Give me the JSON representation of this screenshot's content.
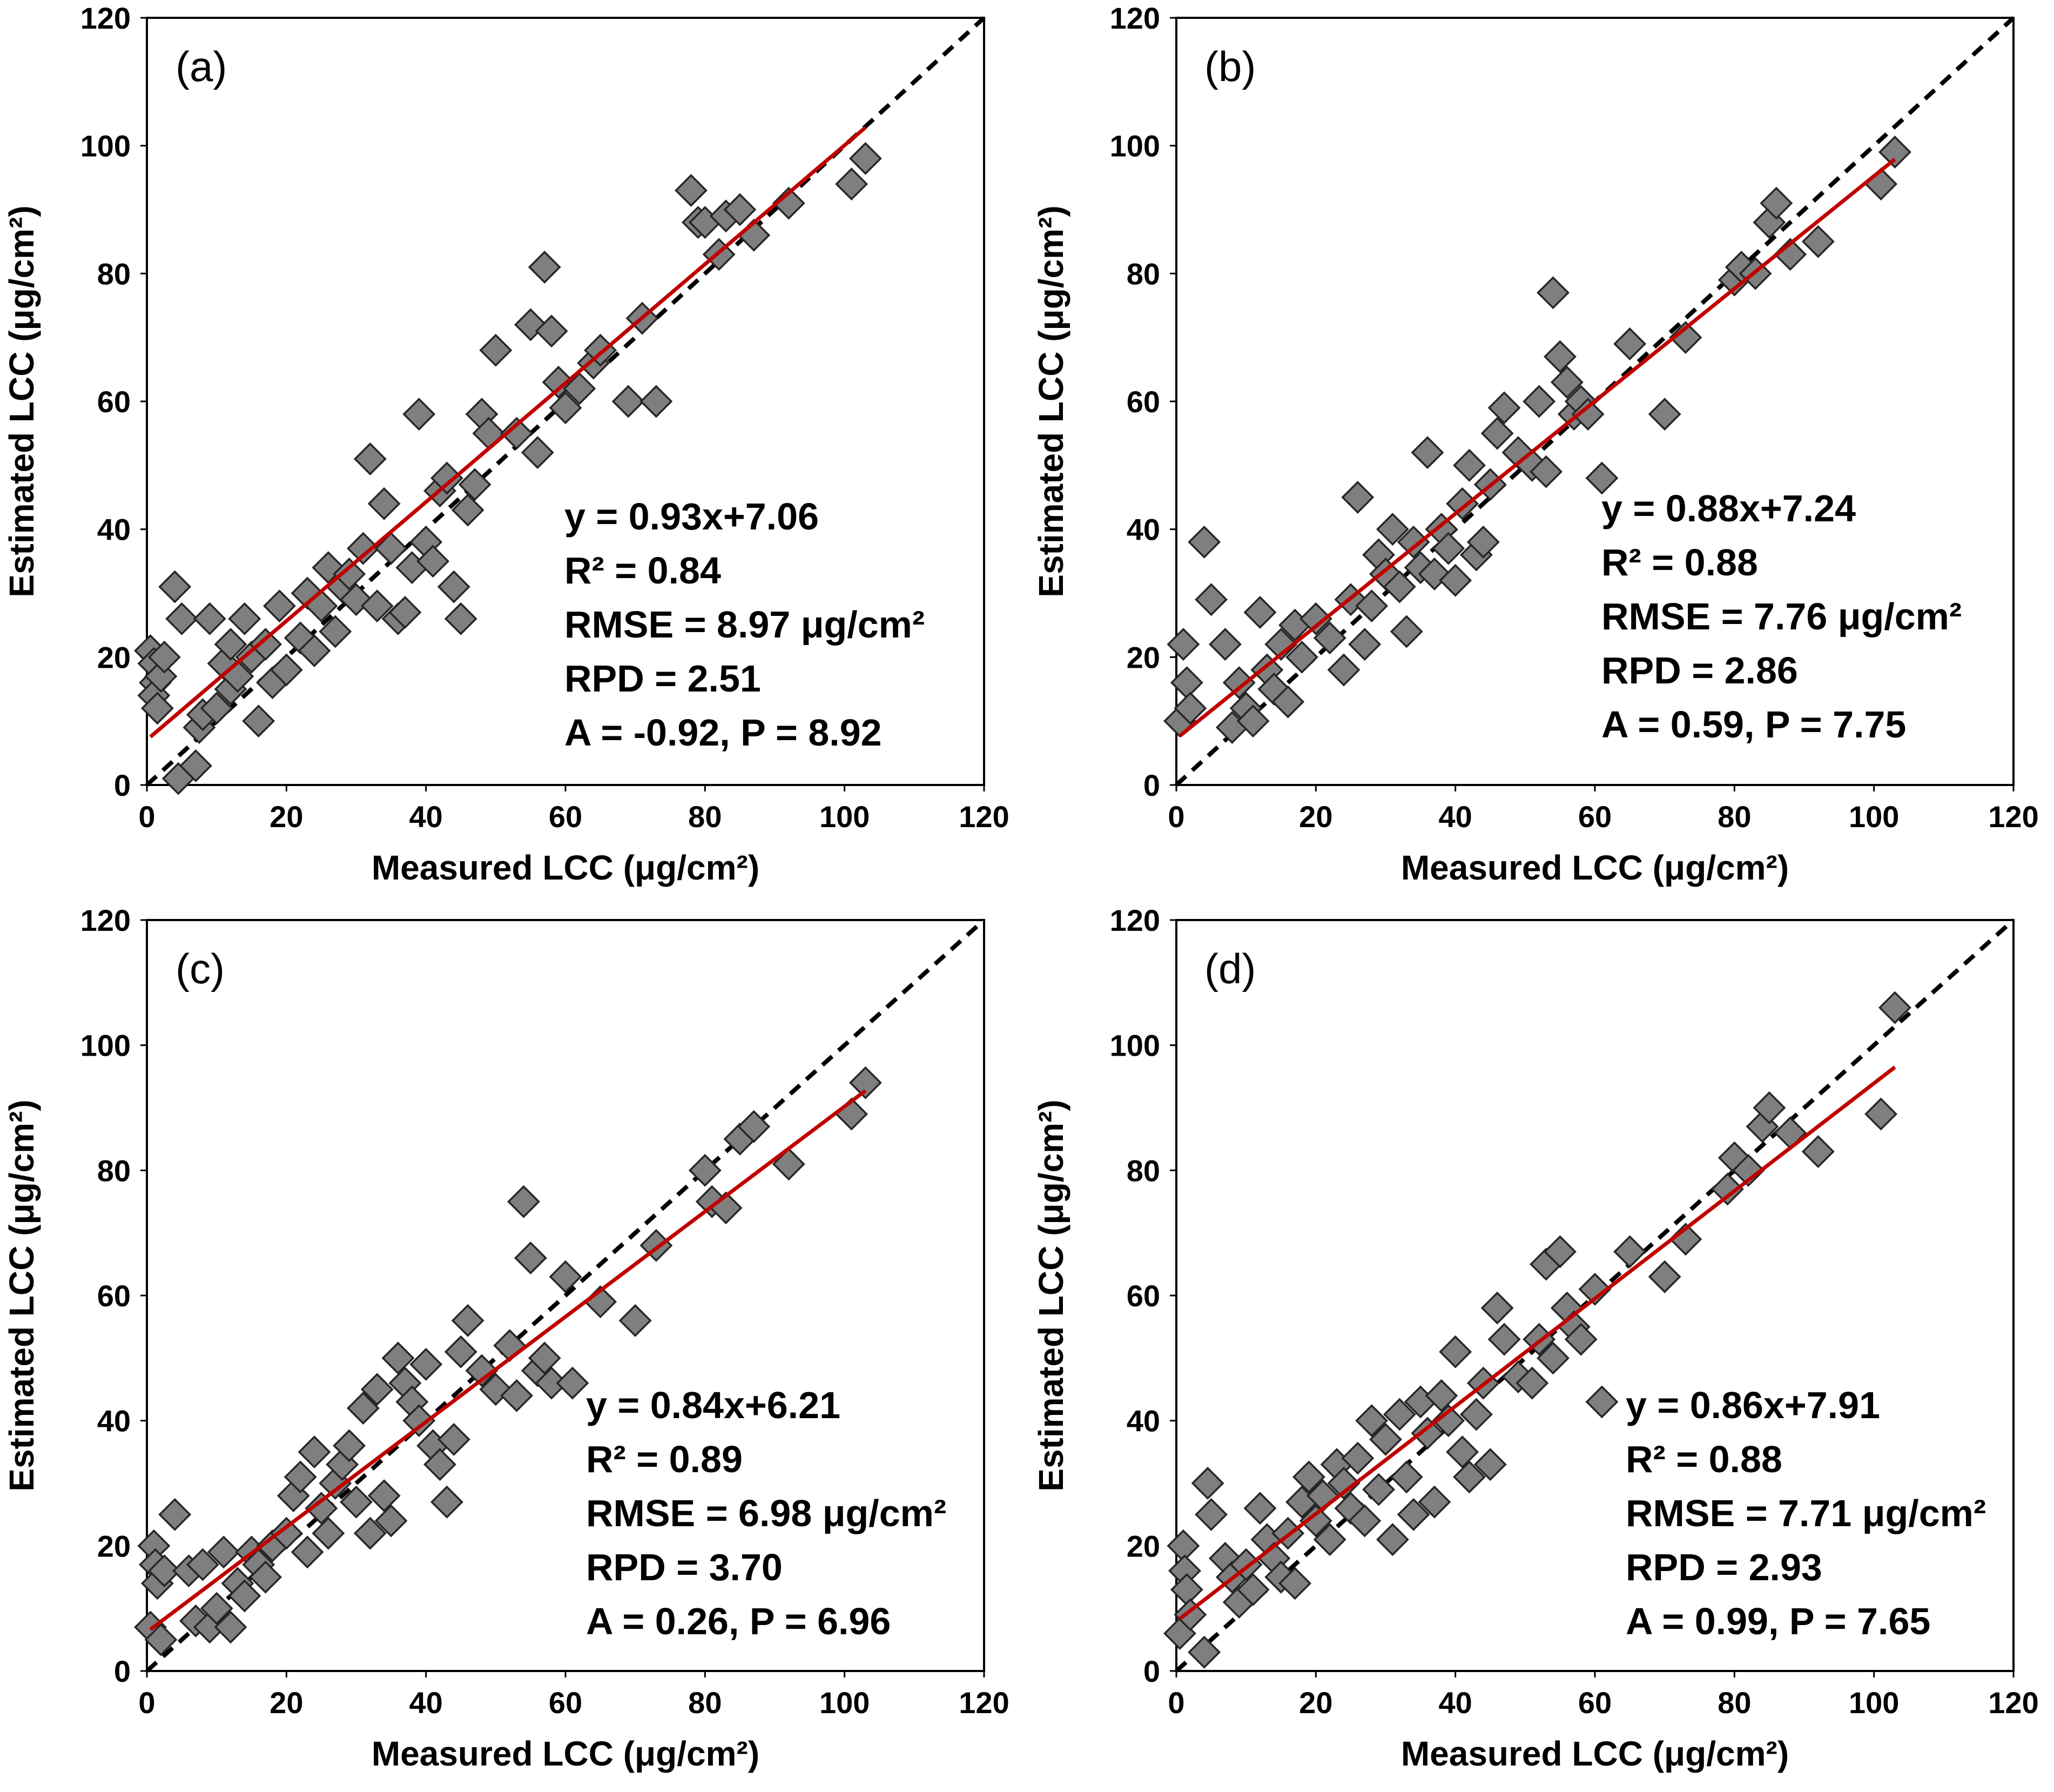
{
  "chart_data": [
    {
      "type": "scatter",
      "panel_label": "(a)",
      "xlabel": "Measured  LCC (μg/cm²)",
      "ylabel": "Estimated  LCC (μg/cm²)",
      "xlim": [
        0,
        120
      ],
      "ylim": [
        0,
        120
      ],
      "xticks": [
        0,
        20,
        40,
        60,
        80,
        100,
        120
      ],
      "yticks": [
        0,
        20,
        40,
        60,
        80,
        100,
        120
      ],
      "fit": {
        "slope": 0.93,
        "intercept": 7.06,
        "x_range": [
          0.5,
          103
        ]
      },
      "stats": [
        "y = 0.93x+7.06",
        "R² = 0.84",
        "RMSE = 8.97 μg/cm²",
        "RPD = 2.51",
        "A = -0.92, P = 8.92"
      ],
      "points": [
        [
          0.5,
          21
        ],
        [
          1,
          19
        ],
        [
          1.2,
          16
        ],
        [
          1,
          14
        ],
        [
          1.5,
          12
        ],
        [
          2,
          17
        ],
        [
          2.5,
          20
        ],
        [
          4,
          31
        ],
        [
          5,
          26
        ],
        [
          4.5,
          1
        ],
        [
          7,
          3
        ],
        [
          7.5,
          9
        ],
        [
          8,
          11
        ],
        [
          9,
          26
        ],
        [
          10,
          12
        ],
        [
          11,
          19
        ],
        [
          12,
          22
        ],
        [
          12,
          15
        ],
        [
          13,
          17
        ],
        [
          14,
          26
        ],
        [
          15,
          20
        ],
        [
          16,
          10
        ],
        [
          17,
          22
        ],
        [
          18,
          16
        ],
        [
          19,
          28
        ],
        [
          20,
          18
        ],
        [
          22,
          23
        ],
        [
          23,
          30
        ],
        [
          24,
          21
        ],
        [
          25,
          28
        ],
        [
          26,
          34
        ],
        [
          27,
          24
        ],
        [
          28,
          31
        ],
        [
          29,
          33
        ],
        [
          30,
          29
        ],
        [
          31,
          37
        ],
        [
          32,
          51
        ],
        [
          33,
          28
        ],
        [
          34,
          44
        ],
        [
          35,
          37
        ],
        [
          36,
          26
        ],
        [
          37,
          27
        ],
        [
          38,
          34
        ],
        [
          39,
          58
        ],
        [
          40,
          38
        ],
        [
          41,
          35
        ],
        [
          42,
          46
        ],
        [
          43,
          48
        ],
        [
          44,
          31
        ],
        [
          45,
          26
        ],
        [
          46,
          43
        ],
        [
          47,
          47
        ],
        [
          48,
          58
        ],
        [
          49,
          55
        ],
        [
          50,
          68
        ],
        [
          53,
          55
        ],
        [
          55,
          72
        ],
        [
          56,
          52
        ],
        [
          57,
          81
        ],
        [
          58,
          71
        ],
        [
          59,
          63
        ],
        [
          60,
          59
        ],
        [
          62,
          62
        ],
        [
          64,
          66
        ],
        [
          65,
          68
        ],
        [
          69,
          60
        ],
        [
          71,
          73
        ],
        [
          73,
          60
        ],
        [
          78,
          93
        ],
        [
          79,
          88
        ],
        [
          80,
          88
        ],
        [
          82,
          83
        ],
        [
          83,
          89
        ],
        [
          85,
          90
        ],
        [
          87,
          86
        ],
        [
          92,
          91
        ],
        [
          101,
          94
        ],
        [
          103,
          98
        ]
      ]
    },
    {
      "type": "scatter",
      "panel_label": "(b)",
      "xlabel": "Measured  LCC (μg/cm²)",
      "ylabel": "Estimated  LCC (μg/cm²)",
      "xlim": [
        0,
        120
      ],
      "ylim": [
        0,
        120
      ],
      "xticks": [
        0,
        20,
        40,
        60,
        80,
        100,
        120
      ],
      "yticks": [
        0,
        20,
        40,
        60,
        80,
        100,
        120
      ],
      "fit": {
        "slope": 0.88,
        "intercept": 7.24,
        "x_range": [
          0.5,
          103
        ]
      },
      "stats": [
        "y = 0.88x+7.24",
        "R² = 0.88",
        "RMSE = 7.76 μg/cm²",
        "RPD = 2.86",
        "A = 0.59, P = 7.75"
      ],
      "points": [
        [
          0.5,
          10
        ],
        [
          1,
          22
        ],
        [
          1.5,
          16
        ],
        [
          2,
          12
        ],
        [
          4,
          38
        ],
        [
          5,
          29
        ],
        [
          7,
          22
        ],
        [
          8,
          9
        ],
        [
          9,
          16
        ],
        [
          10,
          12
        ],
        [
          11,
          10
        ],
        [
          12,
          27
        ],
        [
          13,
          18
        ],
        [
          14,
          15
        ],
        [
          15,
          22
        ],
        [
          16,
          13
        ],
        [
          17,
          25
        ],
        [
          18,
          20
        ],
        [
          20,
          26
        ],
        [
          22,
          23
        ],
        [
          24,
          18
        ],
        [
          25,
          29
        ],
        [
          26,
          45
        ],
        [
          27,
          22
        ],
        [
          28,
          28
        ],
        [
          29,
          36
        ],
        [
          30,
          33
        ],
        [
          31,
          40
        ],
        [
          32,
          31
        ],
        [
          33,
          24
        ],
        [
          34,
          38
        ],
        [
          35,
          34
        ],
        [
          36,
          52
        ],
        [
          37,
          33
        ],
        [
          38,
          40
        ],
        [
          39,
          37
        ],
        [
          40,
          32
        ],
        [
          41,
          44
        ],
        [
          42,
          50
        ],
        [
          43,
          36
        ],
        [
          44,
          38
        ],
        [
          45,
          47
        ],
        [
          46,
          55
        ],
        [
          47,
          59
        ],
        [
          49,
          52
        ],
        [
          51,
          50
        ],
        [
          52,
          60
        ],
        [
          53,
          49
        ],
        [
          54,
          77
        ],
        [
          55,
          67
        ],
        [
          56,
          63
        ],
        [
          57,
          58
        ],
        [
          58,
          60
        ],
        [
          59,
          58
        ],
        [
          61,
          48
        ],
        [
          65,
          69
        ],
        [
          70,
          58
        ],
        [
          73,
          70
        ],
        [
          80,
          79
        ],
        [
          81,
          81
        ],
        [
          83,
          80
        ],
        [
          85,
          88
        ],
        [
          86,
          91
        ],
        [
          88,
          83
        ],
        [
          92,
          85
        ],
        [
          101,
          94
        ],
        [
          103,
          99
        ]
      ]
    },
    {
      "type": "scatter",
      "panel_label": "(c)",
      "xlabel": "Measured  LCC (μg/cm²)",
      "ylabel": "Estimated  LCC (μg/cm²)",
      "xlim": [
        0,
        120
      ],
      "ylim": [
        0,
        120
      ],
      "xticks": [
        0,
        20,
        40,
        60,
        80,
        100,
        120
      ],
      "yticks": [
        0,
        20,
        40,
        60,
        80,
        100,
        120
      ],
      "fit": {
        "slope": 0.84,
        "intercept": 6.21,
        "x_range": [
          0.5,
          103
        ]
      },
      "stats": [
        "y = 0.84x+6.21",
        "R² = 0.89",
        "RMSE = 6.98 μg/cm²",
        "RPD = 3.70",
        "A = 0.26, P = 6.96"
      ],
      "points": [
        [
          0.5,
          7
        ],
        [
          1,
          20
        ],
        [
          1.2,
          17
        ],
        [
          1.5,
          14
        ],
        [
          2,
          5
        ],
        [
          2.5,
          16
        ],
        [
          4,
          25
        ],
        [
          6,
          16
        ],
        [
          7,
          8
        ],
        [
          8,
          17
        ],
        [
          9,
          7
        ],
        [
          10,
          10
        ],
        [
          11,
          19
        ],
        [
          12,
          7
        ],
        [
          13,
          14
        ],
        [
          14,
          12
        ],
        [
          15,
          19
        ],
        [
          16,
          17
        ],
        [
          17,
          15
        ],
        [
          18,
          20
        ],
        [
          20,
          22
        ],
        [
          21,
          28
        ],
        [
          22,
          31
        ],
        [
          23,
          19
        ],
        [
          24,
          35
        ],
        [
          25,
          26
        ],
        [
          26,
          22
        ],
        [
          27,
          30
        ],
        [
          28,
          33
        ],
        [
          29,
          36
        ],
        [
          30,
          27
        ],
        [
          31,
          42
        ],
        [
          32,
          22
        ],
        [
          33,
          45
        ],
        [
          34,
          28
        ],
        [
          35,
          24
        ],
        [
          36,
          50
        ],
        [
          37,
          46
        ],
        [
          38,
          43
        ],
        [
          39,
          40
        ],
        [
          40,
          49
        ],
        [
          41,
          36
        ],
        [
          42,
          33
        ],
        [
          43,
          27
        ],
        [
          44,
          37
        ],
        [
          45,
          51
        ],
        [
          46,
          56
        ],
        [
          48,
          48
        ],
        [
          50,
          45
        ],
        [
          52,
          52
        ],
        [
          53,
          44
        ],
        [
          54,
          75
        ],
        [
          55,
          66
        ],
        [
          56,
          48
        ],
        [
          57,
          50
        ],
        [
          58,
          46
        ],
        [
          60,
          63
        ],
        [
          61,
          46
        ],
        [
          65,
          59
        ],
        [
          70,
          56
        ],
        [
          73,
          68
        ],
        [
          80,
          80
        ],
        [
          81,
          75
        ],
        [
          83,
          74
        ],
        [
          85,
          85
        ],
        [
          87,
          87
        ],
        [
          92,
          81
        ],
        [
          101,
          89
        ],
        [
          103,
          94
        ]
      ]
    },
    {
      "type": "scatter",
      "panel_label": "(d)",
      "xlabel": "Measured  LCC (μg/cm²)",
      "ylabel": "Estimated  LCC (μg/cm²)",
      "xlim": [
        0,
        120
      ],
      "ylim": [
        0,
        120
      ],
      "xticks": [
        0,
        20,
        40,
        60,
        80,
        100,
        120
      ],
      "yticks": [
        0,
        20,
        40,
        60,
        80,
        100,
        120
      ],
      "fit": {
        "slope": 0.86,
        "intercept": 7.91,
        "x_range": [
          0.5,
          103
        ]
      },
      "stats": [
        "y = 0.86x+7.91",
        "R² = 0.88",
        "RMSE = 7.71 μg/cm²",
        "RPD = 2.93",
        "A = 0.99, P = 7.65"
      ],
      "points": [
        [
          0.5,
          6
        ],
        [
          1,
          20
        ],
        [
          1.2,
          16
        ],
        [
          1.5,
          13
        ],
        [
          2,
          9
        ],
        [
          4,
          3
        ],
        [
          4.5,
          30
        ],
        [
          5,
          25
        ],
        [
          7,
          18
        ],
        [
          8,
          15
        ],
        [
          9,
          11
        ],
        [
          10,
          17
        ],
        [
          11,
          13
        ],
        [
          12,
          26
        ],
        [
          13,
          21
        ],
        [
          14,
          18
        ],
        [
          15,
          15
        ],
        [
          16,
          22
        ],
        [
          17,
          14
        ],
        [
          18,
          27
        ],
        [
          19,
          31
        ],
        [
          20,
          24
        ],
        [
          21,
          28
        ],
        [
          22,
          21
        ],
        [
          23,
          33
        ],
        [
          24,
          30
        ],
        [
          25,
          26
        ],
        [
          26,
          34
        ],
        [
          27,
          24
        ],
        [
          28,
          40
        ],
        [
          29,
          29
        ],
        [
          30,
          37
        ],
        [
          31,
          21
        ],
        [
          32,
          41
        ],
        [
          33,
          31
        ],
        [
          34,
          25
        ],
        [
          35,
          43
        ],
        [
          36,
          38
        ],
        [
          37,
          27
        ],
        [
          38,
          44
        ],
        [
          39,
          40
        ],
        [
          40,
          51
        ],
        [
          41,
          35
        ],
        [
          42,
          31
        ],
        [
          43,
          41
        ],
        [
          44,
          46
        ],
        [
          45,
          33
        ],
        [
          46,
          58
        ],
        [
          47,
          53
        ],
        [
          49,
          47
        ],
        [
          51,
          46
        ],
        [
          52,
          53
        ],
        [
          53,
          65
        ],
        [
          54,
          50
        ],
        [
          55,
          67
        ],
        [
          56,
          58
        ],
        [
          57,
          55
        ],
        [
          58,
          53
        ],
        [
          60,
          61
        ],
        [
          61,
          43
        ],
        [
          65,
          67
        ],
        [
          70,
          63
        ],
        [
          73,
          69
        ],
        [
          79,
          77
        ],
        [
          80,
          82
        ],
        [
          82,
          80
        ],
        [
          84,
          87
        ],
        [
          85,
          90
        ],
        [
          88,
          86
        ],
        [
          92,
          83
        ],
        [
          101,
          89
        ],
        [
          103,
          106
        ]
      ]
    }
  ]
}
